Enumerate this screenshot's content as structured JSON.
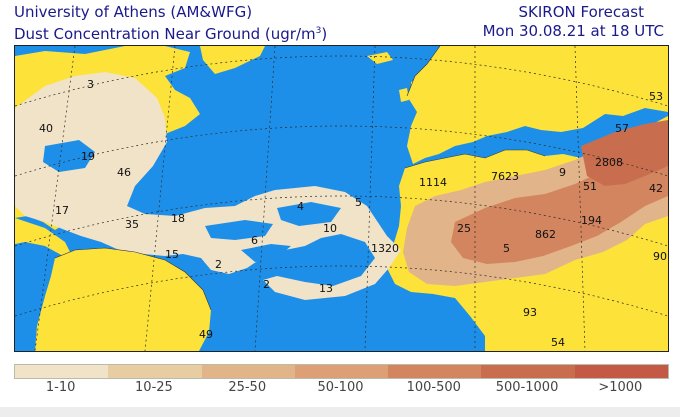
{
  "header": {
    "org": "University of Athens (AM&WFG)",
    "product": "Dust Concentration Near Ground (ugr/m",
    "product_sup": "3",
    "product_end": ")",
    "model": "SKIRON Forecast",
    "valid_time": "Mon 30.08.21 at 18 UTC"
  },
  "colors": {
    "ocean": "#1e8fe8",
    "land": "#fde23a",
    "grid": "#2b2b2b"
  },
  "map": {
    "value_labels": [
      "3",
      "40",
      "19",
      "46",
      "17",
      "35",
      "18",
      "15",
      "2",
      "6",
      "2",
      "4",
      "5",
      "10",
      "13",
      "1320",
      "1114",
      "7623",
      "9",
      "2808",
      "51",
      "57",
      "53",
      "42",
      "25",
      "5",
      "862",
      "194",
      "90",
      "49",
      "93",
      "54"
    ]
  },
  "legend": {
    "bins": [
      {
        "label": "1-10",
        "color": "#f1e3c8"
      },
      {
        "label": "10-25",
        "color": "#e8cda3"
      },
      {
        "label": "25-50",
        "color": "#e2b489"
      },
      {
        "label": "50-100",
        "color": "#dc9f76"
      },
      {
        "label": "100-500",
        "color": "#d2855f"
      },
      {
        "label": "500-1000",
        "color": "#c86e4f"
      },
      {
        "label": ">1000",
        "color": "#c45a45"
      }
    ]
  }
}
